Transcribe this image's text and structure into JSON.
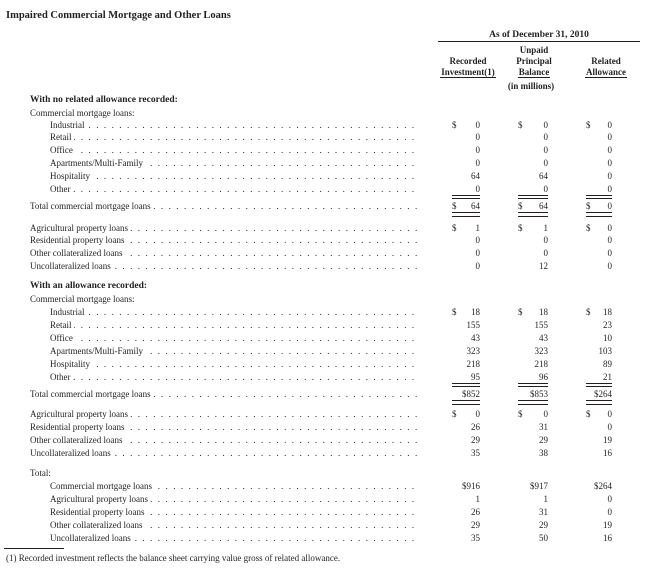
{
  "title": "Impaired Commercial Mortgage and Other Loans",
  "header": {
    "as_of": "As of December 31, 2010",
    "col1": [
      "Recorded",
      "Investment(1)"
    ],
    "col2": [
      "Unpaid",
      "Principal",
      "Balance"
    ],
    "col3": [
      "Related",
      "Allowance"
    ],
    "units": "(in millions)"
  },
  "sections": [
    {
      "label": "With no related allowance recorded:"
    },
    {
      "label": "With an allowance recorded:"
    },
    {
      "label": "Total:"
    }
  ],
  "rows": [
    {
      "label": "Commercial mortgage loans:",
      "values": [
        "",
        "",
        ""
      ]
    },
    {
      "label": "Industrial",
      "values": [
        "0",
        "0",
        "0"
      ],
      "dollar": true
    },
    {
      "label": "Retail",
      "values": [
        "0",
        "0",
        "0"
      ]
    },
    {
      "label": "Office",
      "values": [
        "0",
        "0",
        "0"
      ]
    },
    {
      "label": "Apartments/Multi-Family",
      "values": [
        "0",
        "0",
        "0"
      ]
    },
    {
      "label": "Hospitality",
      "values": [
        "64",
        "64",
        "0"
      ]
    },
    {
      "label": "Other",
      "values": [
        "0",
        "0",
        "0"
      ]
    },
    {
      "label": "Total commercial mortgage loans",
      "values": [
        "64",
        "64",
        "0"
      ],
      "dollar": true
    },
    {
      "label": "Agricultural property loans",
      "values": [
        "1",
        "1",
        "0"
      ],
      "dollar": true
    },
    {
      "label": "Residential property loans",
      "values": [
        "0",
        "0",
        "0"
      ]
    },
    {
      "label": "Other collateralized loans",
      "values": [
        "0",
        "0",
        "0"
      ]
    },
    {
      "label": "Uncollateralized loans",
      "values": [
        "0",
        "12",
        "0"
      ]
    },
    {
      "label": "Commercial mortgage loans:",
      "values": [
        "",
        "",
        ""
      ]
    },
    {
      "label": "Industrial",
      "values": [
        "18",
        "18",
        "18"
      ],
      "dollar": true
    },
    {
      "label": "Retail",
      "values": [
        "155",
        "155",
        "23"
      ]
    },
    {
      "label": "Office",
      "values": [
        "43",
        "43",
        "10"
      ]
    },
    {
      "label": "Apartments/Multi-Family",
      "values": [
        "323",
        "323",
        "103"
      ]
    },
    {
      "label": "Hospitality",
      "values": [
        "218",
        "218",
        "89"
      ]
    },
    {
      "label": "Other",
      "values": [
        "95",
        "96",
        "21"
      ]
    },
    {
      "label": "Total commercial mortgage loans",
      "values": [
        "$852",
        "$853",
        "$264"
      ]
    },
    {
      "label": "Agricultural property loans",
      "values": [
        "0",
        "0",
        "0"
      ],
      "dollar": true
    },
    {
      "label": "Residential property loans",
      "values": [
        "26",
        "31",
        "0"
      ]
    },
    {
      "label": "Other collateralized loans",
      "values": [
        "29",
        "29",
        "19"
      ]
    },
    {
      "label": "Uncollateralized loans",
      "values": [
        "35",
        "38",
        "16"
      ]
    },
    {
      "label": "Commercial mortgage loans",
      "values": [
        "$916",
        "$917",
        "$264"
      ]
    },
    {
      "label": "Agricultural property loans",
      "values": [
        "1",
        "1",
        "0"
      ]
    },
    {
      "label": "Residential property loans",
      "values": [
        "26",
        "31",
        "0"
      ]
    },
    {
      "label": "Other collateralized loans",
      "values": [
        "29",
        "29",
        "19"
      ]
    },
    {
      "label": "Uncollateralized loans",
      "values": [
        "35",
        "50",
        "16"
      ]
    }
  ],
  "footnote": "(1)   Recorded investment reflects the balance sheet carrying value gross of related allowance."
}
